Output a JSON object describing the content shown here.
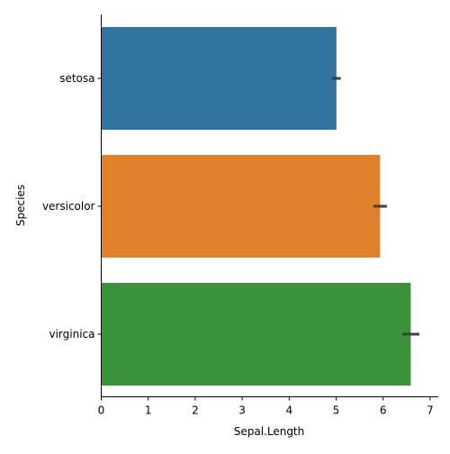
{
  "chart_data": {
    "type": "bar",
    "orientation": "horizontal",
    "title": "",
    "xlabel": "Sepal.Length",
    "ylabel": "Species",
    "xlim": [
      0,
      7.1
    ],
    "x_ticks": [
      0,
      1,
      2,
      3,
      4,
      5,
      6,
      7
    ],
    "categories": [
      "setosa",
      "versicolor",
      "virginica"
    ],
    "values": [
      5.006,
      5.936,
      6.588
    ],
    "ci": [
      [
        4.91,
        5.1
      ],
      [
        5.79,
        6.08
      ],
      [
        6.41,
        6.77
      ]
    ],
    "colors": [
      "#3274a1",
      "#e1812c",
      "#3a923a"
    ],
    "error_color": "#3f3f3f",
    "grid": false,
    "legend": "none"
  }
}
